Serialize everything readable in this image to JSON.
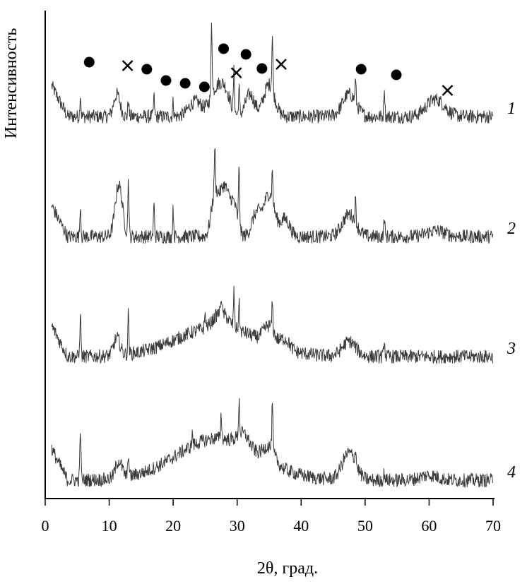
{
  "chart_data": {
    "type": "line",
    "title": "",
    "xlabel": "2θ, град.",
    "ylabel": "Интенсивность",
    "xlim": [
      0,
      70
    ],
    "x_ticks": [
      0,
      10,
      20,
      30,
      40,
      50,
      60,
      70
    ],
    "x_tick_labels": [
      "0",
      "10",
      "20",
      "30",
      "40",
      "50",
      "60",
      "70"
    ],
    "grid": false,
    "y_ticks_shown": false,
    "colors": {
      "trace": "#3a3a3a",
      "axis": "#000000",
      "marker": "#000000"
    },
    "series": [
      {
        "label": "1",
        "baseline": "flat",
        "background_hump": 0.0,
        "broad_peaks": [
          [
            11.2,
            0.45,
            0.7
          ],
          [
            23.5,
            0.3,
            1.5
          ],
          [
            26.5,
            0.45,
            1.2
          ],
          [
            28.0,
            0.55,
            1.2
          ],
          [
            32.0,
            0.45,
            1.0
          ],
          [
            35.0,
            0.65,
            1.2
          ],
          [
            47.5,
            0.45,
            1.5
          ],
          [
            61.0,
            0.35,
            2.0
          ]
        ],
        "sharp_peaks": [
          [
            5.5,
            0.45
          ],
          [
            13.0,
            0.35
          ],
          [
            17.0,
            0.4
          ],
          [
            20.0,
            0.3
          ],
          [
            26.0,
            1.55
          ],
          [
            29.5,
            0.8
          ],
          [
            30.3,
            0.55
          ],
          [
            35.5,
            1.1
          ],
          [
            48.5,
            0.45
          ],
          [
            53.0,
            0.6
          ]
        ]
      },
      {
        "label": "2",
        "baseline": "flat",
        "background_hump": 0.0,
        "broad_peaks": [
          [
            11.5,
            1.05,
            0.8
          ],
          [
            26.5,
            0.8,
            0.8
          ],
          [
            28.0,
            1.0,
            1.0
          ],
          [
            29.5,
            0.6,
            0.8
          ],
          [
            33.0,
            0.45,
            1.0
          ],
          [
            35.0,
            0.85,
            1.2
          ],
          [
            37.5,
            0.35,
            1.0
          ],
          [
            47.5,
            0.45,
            1.5
          ],
          [
            61.0,
            0.12,
            2.0
          ]
        ],
        "sharp_peaks": [
          [
            5.5,
            0.65
          ],
          [
            13.0,
            1.15
          ],
          [
            17.0,
            0.65
          ],
          [
            20.0,
            0.55
          ],
          [
            26.5,
            0.9
          ],
          [
            30.3,
            1.2
          ],
          [
            35.5,
            0.6
          ],
          [
            48.5,
            0.45
          ],
          [
            53.0,
            0.4
          ]
        ]
      },
      {
        "label": "3",
        "baseline": "amorphous hump",
        "background_hump": 0.6,
        "broad_peaks": [
          [
            11.2,
            0.35,
            0.7
          ],
          [
            27.5,
            0.3,
            1.5
          ],
          [
            35.0,
            0.35,
            1.2
          ],
          [
            37.5,
            0.2,
            1.0
          ],
          [
            47.5,
            0.3,
            1.5
          ]
        ],
        "sharp_peaks": [
          [
            5.5,
            0.9
          ],
          [
            13.0,
            0.85
          ],
          [
            25.0,
            0.3
          ],
          [
            27.5,
            0.35
          ],
          [
            29.5,
            0.7
          ],
          [
            30.3,
            0.55
          ],
          [
            35.5,
            0.55
          ],
          [
            53.0,
            0.35
          ]
        ]
      },
      {
        "label": "4",
        "baseline": "amorphous hump",
        "background_hump": 0.85,
        "broad_peaks": [
          [
            11.5,
            0.35,
            0.7
          ],
          [
            31.0,
            0.25,
            1.2
          ],
          [
            35.0,
            0.3,
            1.2
          ],
          [
            47.5,
            0.55,
            1.5
          ],
          [
            60.0,
            0.1,
            2.0
          ]
        ],
        "sharp_peaks": [
          [
            5.5,
            1.05
          ],
          [
            13.0,
            0.5
          ],
          [
            23.0,
            0.25
          ],
          [
            27.5,
            0.5
          ],
          [
            30.3,
            0.7
          ],
          [
            35.5,
            0.95
          ],
          [
            48.5,
            0.3
          ],
          [
            53.0,
            0.15
          ]
        ]
      }
    ],
    "phase_markers": {
      "circle": [
        5.0,
        14.0,
        17.0,
        20.0,
        23.0,
        26.0,
        29.5,
        32.0,
        47.5,
        53.0
      ],
      "cross": [
        11.0,
        28.0,
        35.0,
        61.0
      ]
    }
  }
}
